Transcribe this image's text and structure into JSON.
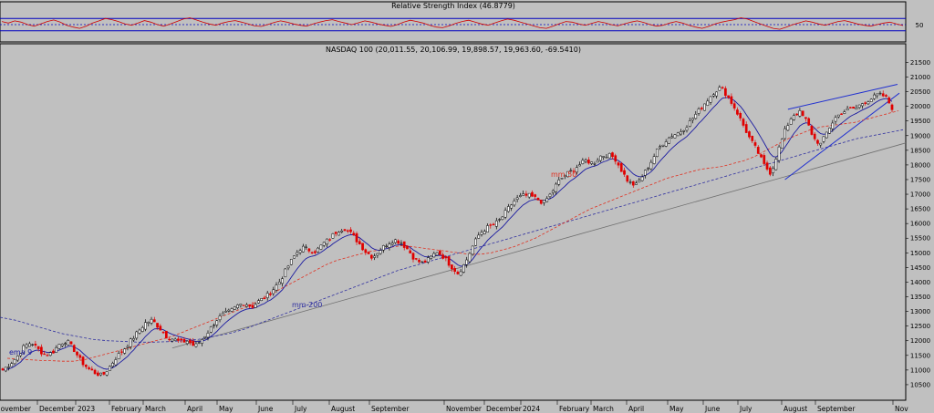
{
  "chart_data": [
    {
      "type": "line",
      "title": "Relative Strength Index (46.8779)",
      "ylim": [
        0,
        100
      ],
      "reference_lines": [
        30,
        50,
        70
      ],
      "y_ticks": [
        50
      ],
      "colors": {
        "line": "#d00000",
        "bands": "#0000c0"
      },
      "values": [
        60,
        55,
        62,
        58,
        50,
        45,
        52,
        60,
        65,
        58,
        48,
        42,
        38,
        45,
        55,
        62,
        70,
        66,
        60,
        52,
        48,
        55,
        63,
        58,
        50,
        45,
        52,
        60,
        68,
        72,
        65,
        58,
        52,
        48,
        55,
        60,
        63,
        58,
        52,
        46,
        44,
        50,
        57,
        62,
        58,
        52,
        48,
        45,
        52,
        58,
        63,
        66,
        60,
        55,
        50,
        56,
        62,
        58,
        52,
        48,
        44,
        50,
        58,
        64,
        60,
        55,
        48,
        42,
        40,
        46,
        54,
        60,
        64,
        58,
        52,
        48,
        55,
        62,
        68,
        64,
        58,
        52,
        46,
        40,
        38,
        45,
        53,
        60,
        58,
        52,
        48,
        54,
        60,
        56,
        50,
        46,
        52,
        58,
        62,
        57,
        50,
        45,
        48,
        55,
        60,
        55,
        48,
        42,
        38,
        44,
        52,
        58,
        62,
        66,
        72,
        68,
        60,
        52,
        45,
        38,
        35,
        42,
        50,
        56,
        62,
        58,
        52,
        48,
        54,
        60,
        63,
        58,
        52,
        48,
        45,
        50,
        55,
        58,
        52,
        47
      ]
    },
    {
      "type": "candlestick",
      "title": "NASDAQ 100 (20,011.55, 20,106.99, 19,898.57, 19,963.60, -69.5410)",
      "ylim": [
        10000,
        21700
      ],
      "y_ticks": [
        10500,
        11000,
        11500,
        12000,
        12500,
        13000,
        13500,
        14000,
        14500,
        15000,
        15500,
        16000,
        16500,
        17000,
        17500,
        18000,
        18500,
        19000,
        19500,
        20000,
        20500,
        21000,
        21500
      ],
      "x_categories": [
        "November",
        "December",
        "2023",
        "February",
        "March",
        "April",
        "May",
        "June",
        "July",
        "August",
        "September",
        "November",
        "December",
        "2024",
        "February",
        "March",
        "April",
        "May",
        "June",
        "July",
        "August",
        "September",
        "Nov"
      ],
      "series_close": [
        11000,
        11200,
        11450,
        11800,
        11950,
        11700,
        11500,
        11600,
        11900,
        12000,
        11700,
        11300,
        11050,
        10900,
        10800,
        11100,
        11450,
        11700,
        12000,
        12300,
        12600,
        12700,
        12450,
        12150,
        12050,
        11950,
        12000,
        11800,
        12050,
        12350,
        12700,
        12900,
        13000,
        13200,
        13300,
        13150,
        13350,
        13500,
        13750,
        14050,
        14500,
        14900,
        15200,
        15100,
        15050,
        15300,
        15500,
        15750,
        15850,
        15650,
        15350,
        15050,
        14850,
        15100,
        15300,
        15450,
        15350,
        15100,
        14750,
        14650,
        14800,
        15050,
        14850,
        14550,
        14300,
        14650,
        15200,
        15650,
        15850,
        15950,
        16150,
        16500,
        16800,
        16950,
        16950,
        16850,
        16700,
        17000,
        17400,
        17650,
        17800,
        18000,
        18150,
        18050,
        18300,
        18350,
        18250,
        17800,
        17400,
        17300,
        17650,
        18050,
        18500,
        18800,
        19000,
        19100,
        19300,
        19600,
        19900,
        20200,
        20500,
        20650,
        20300,
        19900,
        19400,
        18900,
        18500,
        18000,
        17700,
        18500,
        19200,
        19700,
        19800,
        19500,
        18900,
        18700,
        19200,
        19600,
        19800,
        19900,
        19950,
        20150,
        20250,
        20400,
        20350,
        19950
      ],
      "ema9": "blue line",
      "series": [
        {
          "name": "ema 9",
          "color": "#1a1aa0",
          "style": "solid"
        },
        {
          "name": "mm 50",
          "color": "#e03020",
          "style": "dashed"
        },
        {
          "name": "mm 200",
          "color": "#3030a0",
          "style": "dashed"
        }
      ],
      "mm50": [
        11400,
        11380,
        11350,
        11330,
        11320,
        11300,
        11300,
        11350,
        11450,
        11550,
        11650,
        11750,
        11850,
        11950,
        12050,
        12150,
        12300,
        12450,
        12600,
        12750,
        12900,
        13050,
        13200,
        13400,
        13600,
        13800,
        14000,
        14200,
        14400,
        14600,
        14750,
        14850,
        14950,
        15050,
        15100,
        15200,
        15250,
        15200,
        15150,
        15100,
        15050,
        15000,
        14950,
        14950,
        15000,
        15100,
        15200,
        15350,
        15500,
        15700,
        15900,
        16100,
        16300,
        16500,
        16650,
        16800,
        16950,
        17100,
        17250,
        17400,
        17550,
        17650,
        17750,
        17850,
        17900,
        17950,
        18050,
        18150,
        18300,
        18500,
        18700,
        18900,
        19050,
        19200,
        19300,
        19350,
        19400,
        19450,
        19550,
        19650,
        19750,
        19850
      ],
      "mm200": [
        12800,
        12700,
        12550,
        12400,
        12250,
        12150,
        12050,
        12000,
        11980,
        11950,
        11950,
        11970,
        12000,
        12050,
        12150,
        12250,
        12400,
        12600,
        12800,
        13000,
        13200,
        13400,
        13600,
        13800,
        14000,
        14200,
        14400,
        14550,
        14700,
        14850,
        15000,
        15150,
        15300,
        15450,
        15600,
        15750,
        15900,
        16050,
        16200,
        16350,
        16500,
        16650,
        16800,
        16950,
        17100,
        17250,
        17400,
        17550,
        17700,
        17850,
        18000,
        18150,
        18300,
        18450,
        18600,
        18750,
        18900,
        19000,
        19100,
        19200
      ],
      "trendlines": [
        {
          "color": "#707070",
          "description": "long-term support"
        },
        {
          "color": "#2030d0",
          "description": "rising wedge upper"
        },
        {
          "color": "#2030d0",
          "description": "rising wedge lower"
        }
      ]
    }
  ]
}
